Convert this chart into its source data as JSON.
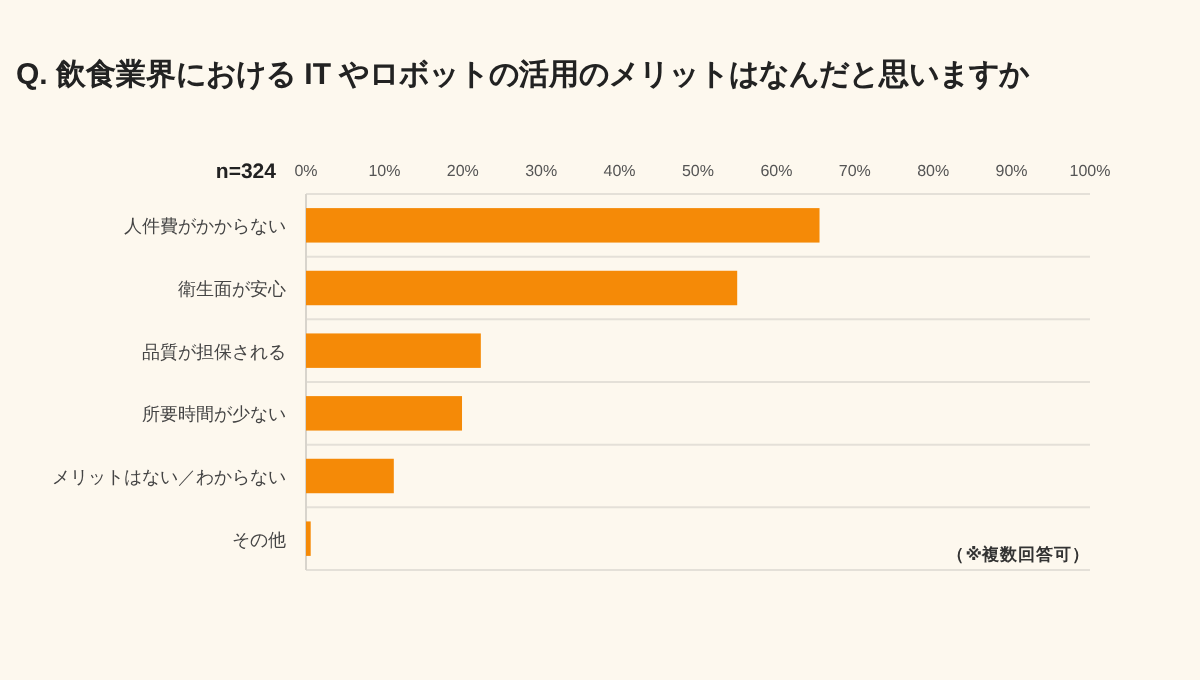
{
  "chart_data": {
    "type": "bar",
    "orientation": "horizontal",
    "title": "Q. 飲食業界における IT やロボットの活用のメリットはなんだと思いますか",
    "categories": [
      "人件費がかからない",
      "衛生面が安心",
      "品質が担保される",
      "所要時間が少ない",
      "メリットはない／わからない",
      "その他"
    ],
    "values": [
      65.5,
      55.0,
      22.3,
      19.9,
      11.2,
      0.6
    ],
    "color": "#f58a07",
    "xlim": [
      0,
      100
    ],
    "xticks": [
      {
        "value": 0,
        "label": "0%"
      },
      {
        "value": 10,
        "label": "10%"
      },
      {
        "value": 20,
        "label": "20%"
      },
      {
        "value": 30,
        "label": "30%"
      },
      {
        "value": 40,
        "label": "40%"
      },
      {
        "value": 50,
        "label": "50%"
      },
      {
        "value": 60,
        "label": "60%"
      },
      {
        "value": 70,
        "label": "70%"
      },
      {
        "value": 80,
        "label": "80%"
      },
      {
        "value": 90,
        "label": "90%"
      },
      {
        "value": 100,
        "label": "100%"
      }
    ],
    "grid": "y",
    "annotations": [
      "n=324",
      "（※複数回答可）"
    ]
  }
}
